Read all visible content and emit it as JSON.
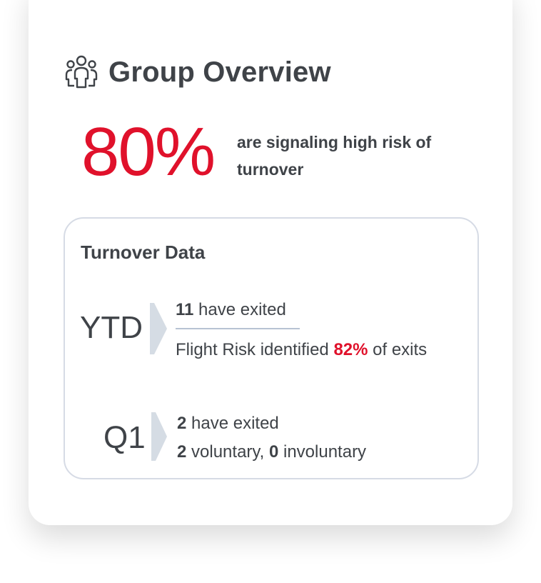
{
  "header": {
    "title": "Group Overview",
    "icon": "group-people-icon"
  },
  "headline": {
    "percent": "80%",
    "text": "are signaling high risk of turnover"
  },
  "turnover": {
    "title": "Turnover Data",
    "ytd": {
      "label": "YTD",
      "exited_count": "11",
      "exited_text": " have exited",
      "flight_prefix": "Flight Risk identified ",
      "flight_percent": "82%",
      "flight_suffix": " of exits"
    },
    "q1": {
      "label": "Q1",
      "exited_count": "2",
      "exited_text": " have exited",
      "voluntary_count": "2",
      "voluntary_text": " voluntary, ",
      "involuntary_count": "0",
      "involuntary_text": " involuntary"
    }
  },
  "colors": {
    "accent": "#e0112b",
    "text": "#3f4348",
    "chevron": "#d5dce4",
    "border": "#d6dbe5"
  }
}
